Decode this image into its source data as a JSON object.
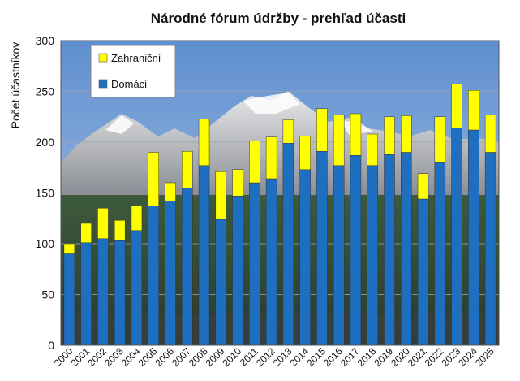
{
  "chart_data": {
    "type": "bar",
    "stacked": true,
    "title": "Národné fórum údržby  - prehľad účasti",
    "xlabel": "",
    "ylabel": "Počet  účastníkov",
    "ylim": [
      0,
      300
    ],
    "yticks": [
      0,
      50,
      100,
      150,
      200,
      250,
      300
    ],
    "grid": true,
    "legend_position": "top-left",
    "categories": [
      "2000",
      "2001",
      "2002",
      "2003",
      "2004",
      "2005",
      "2006",
      "2007",
      "2008",
      "2009",
      "2010",
      "2011",
      "2012",
      "2013",
      "2014",
      "2015",
      "2016",
      "2017",
      "2018",
      "2019",
      "2020",
      "2021",
      "2022",
      "2023",
      "2024",
      "2025"
    ],
    "series": [
      {
        "name": "Domáci",
        "color": "#1f6fc0",
        "values": [
          90,
          101,
          105,
          103,
          113,
          137,
          142,
          155,
          177,
          124,
          147,
          160,
          164,
          199,
          173,
          191,
          177,
          187,
          177,
          188,
          190,
          144,
          180,
          214,
          212,
          190
        ]
      },
      {
        "name": "Zahraniční",
        "color": "#ffff00",
        "values": [
          10,
          19,
          30,
          20,
          24,
          53,
          18,
          36,
          46,
          47,
          26,
          41,
          41,
          23,
          33,
          42,
          50,
          41,
          31,
          37,
          36,
          25,
          45,
          43,
          39,
          37
        ]
      }
    ],
    "legend": [
      "Zahraniční",
      "Domáci"
    ],
    "background": "mountain landscape photo"
  }
}
